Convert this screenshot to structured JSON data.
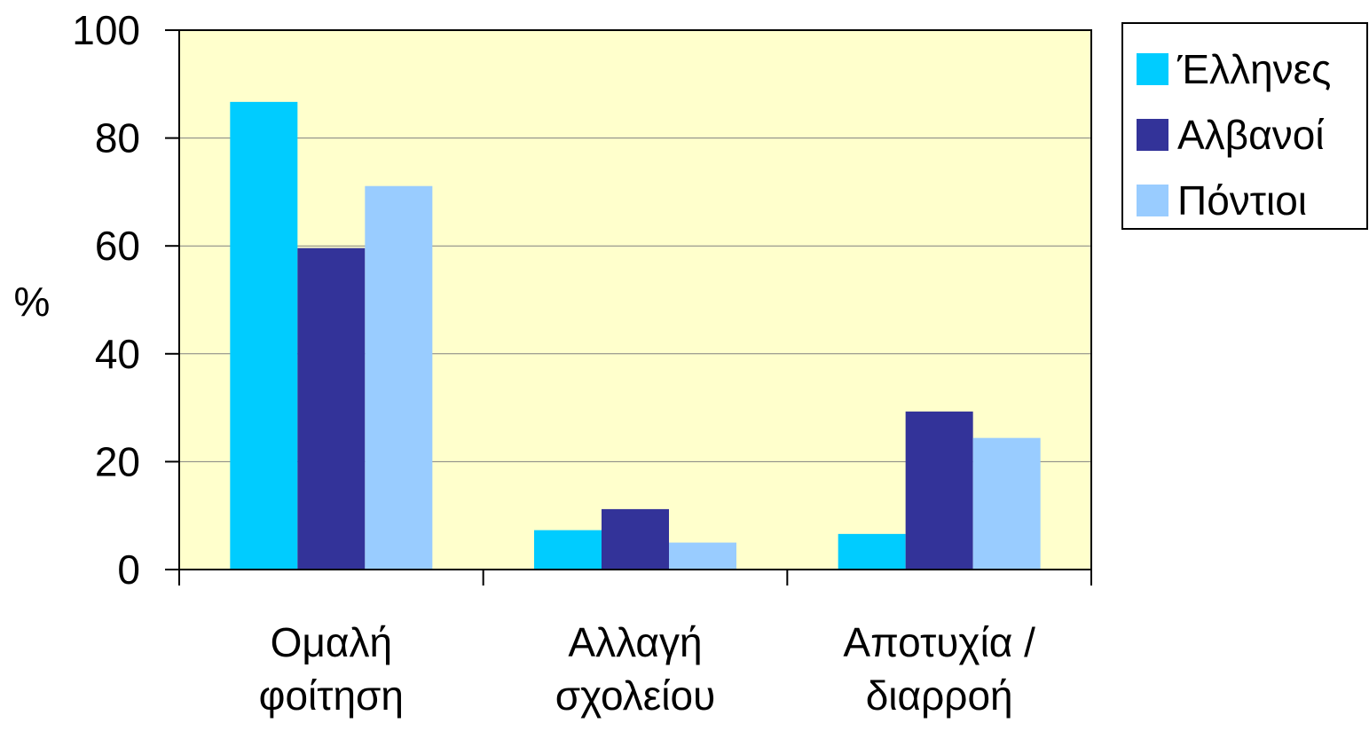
{
  "chart_data": {
    "type": "bar",
    "title": "",
    "xlabel": "",
    "ylabel": "%",
    "ylim": [
      0,
      100
    ],
    "yticks": [
      0,
      20,
      40,
      60,
      80,
      100
    ],
    "grid": true,
    "legend_position": "right",
    "categories": [
      [
        "Ομαλή",
        "φοίτηση"
      ],
      [
        "Αλλαγή",
        "σχολείου"
      ],
      [
        "Αποτυχία /",
        "διαρροή"
      ]
    ],
    "series": [
      {
        "name": "Έλληνες",
        "color": "#00ccff",
        "values": [
          86.7,
          7.3,
          6.6
        ]
      },
      {
        "name": "Αλβανοί",
        "color": "#333399",
        "values": [
          59.6,
          11.2,
          29.3
        ]
      },
      {
        "name": "Πόντιοι",
        "color": "#99ccff",
        "values": [
          71.1,
          5.0,
          24.4
        ]
      }
    ],
    "colors": {
      "plot_background": "#ffffcc",
      "gridline": "#808080",
      "axis": "#000000"
    }
  }
}
